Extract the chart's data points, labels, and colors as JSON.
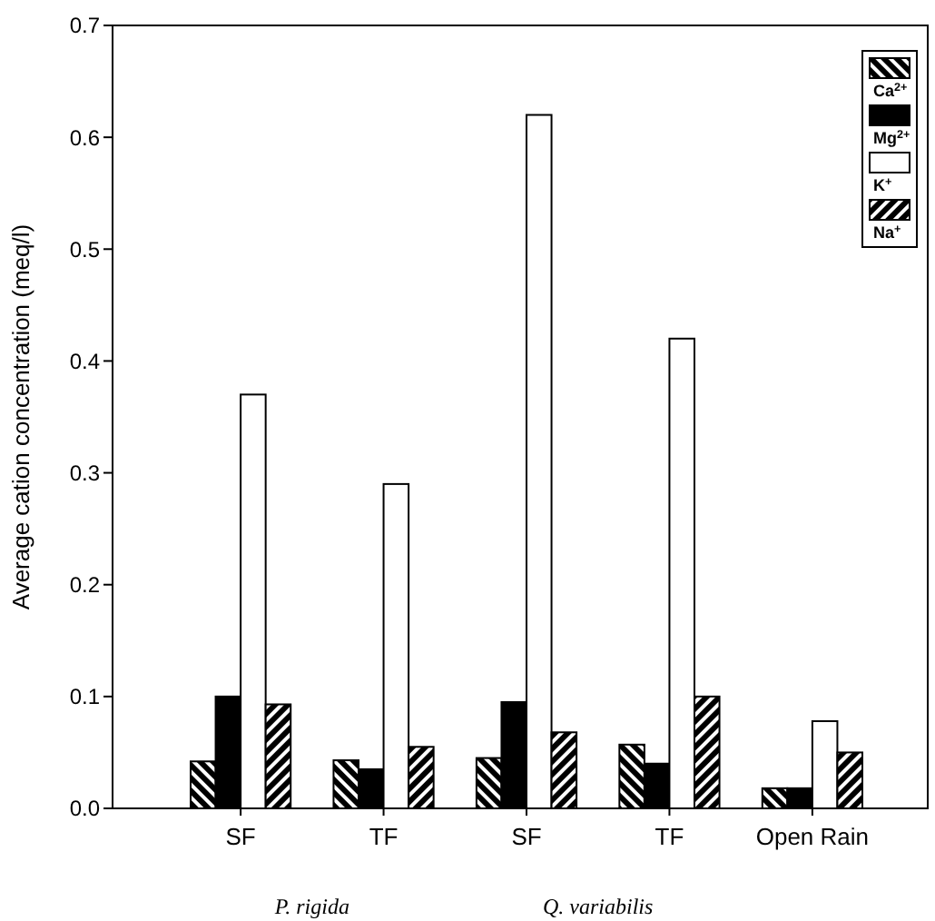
{
  "chart_data": {
    "type": "bar",
    "ylabel": "Average cation concentration (meq/l)",
    "categories": [
      "SF",
      "TF",
      "SF",
      "TF",
      "Open Rain"
    ],
    "series": [
      {
        "name": "Ca$^{2+}$",
        "color": "#000000",
        "values": [
          0.042,
          0.043,
          0.045,
          0.057,
          0.018
        ]
      },
      {
        "name": "Mg$^{2+}$",
        "color": "#000000",
        "values": [
          0.1,
          0.035,
          0.095,
          0.04,
          0.018
        ]
      },
      {
        "name": "K$^{+}$",
        "color": "#ffffff",
        "values": [
          0.37,
          0.29,
          0.62,
          0.42,
          0.078
        ]
      },
      {
        "name": "Na$^{+}$",
        "color": "#000000",
        "values": [
          0.093,
          0.055,
          0.068,
          0.1,
          0.05
        ]
      }
    ],
    "ylim": [
      0,
      0.7
    ],
    "yticks": [
      {
        "value": 0,
        "label": "0.0"
      },
      0.1,
      0.2,
      0.3,
      0.4,
      0.5,
      0.6,
      0.7
    ],
    "legend": "top right",
    "grid": false,
    "annotations": [
      "P. rigida",
      "Q. variabilis"
    ]
  }
}
